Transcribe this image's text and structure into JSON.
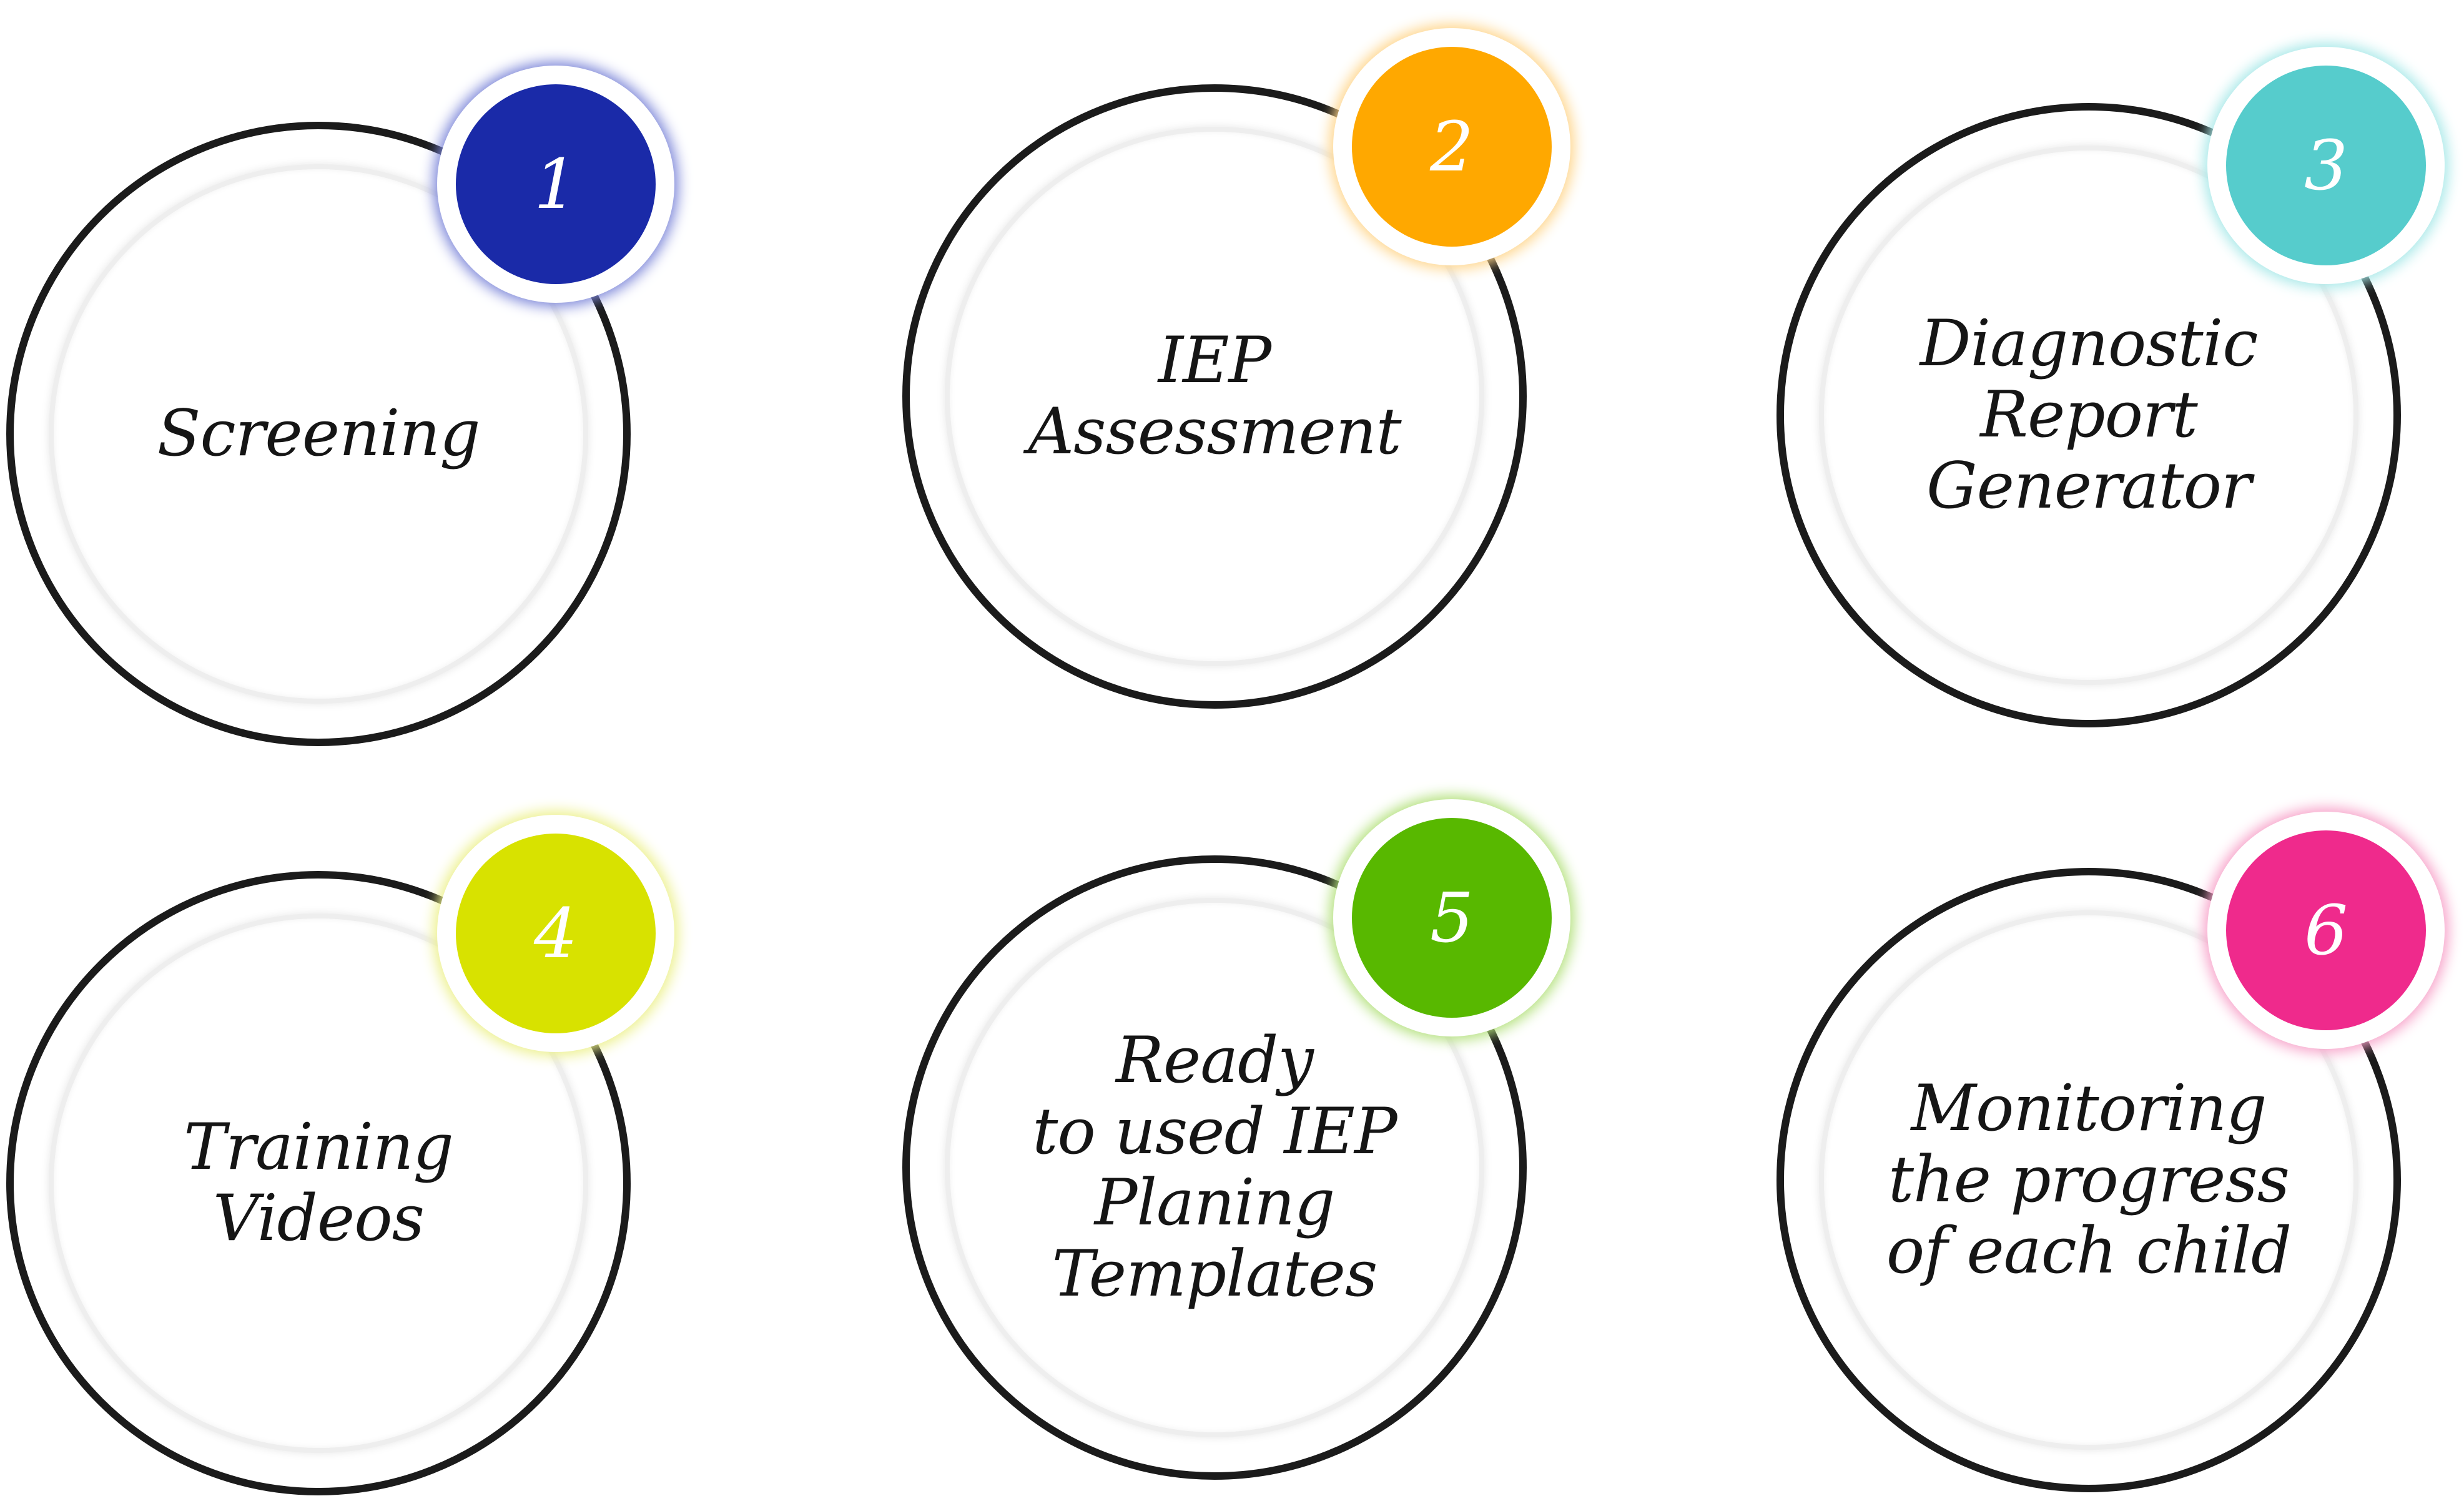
{
  "steps": [
    {
      "number": "1",
      "label": "Screening",
      "color": "#1a2aa8",
      "glow": "#7a84d8"
    },
    {
      "number": "2",
      "label": "IEP\nAssessment",
      "color": "#ffa800",
      "glow": "#ffd58a"
    },
    {
      "number": "3",
      "label": "Diagnostic\nReport\nGenerator",
      "color": "#56cccc",
      "glow": "#a6e8e8"
    },
    {
      "number": "4",
      "label": "Training\nVideos",
      "color": "#d8e200",
      "glow": "#ecf08a"
    },
    {
      "number": "5",
      "label": "Ready\nto used IEP\nPlaning\nTemplates",
      "color": "#58b800",
      "glow": "#b2e07a"
    },
    {
      "number": "6",
      "label": "Monitoring\nthe progress\nof each child",
      "color": "#ef2a8c",
      "glow": "#f7a0c8"
    }
  ]
}
